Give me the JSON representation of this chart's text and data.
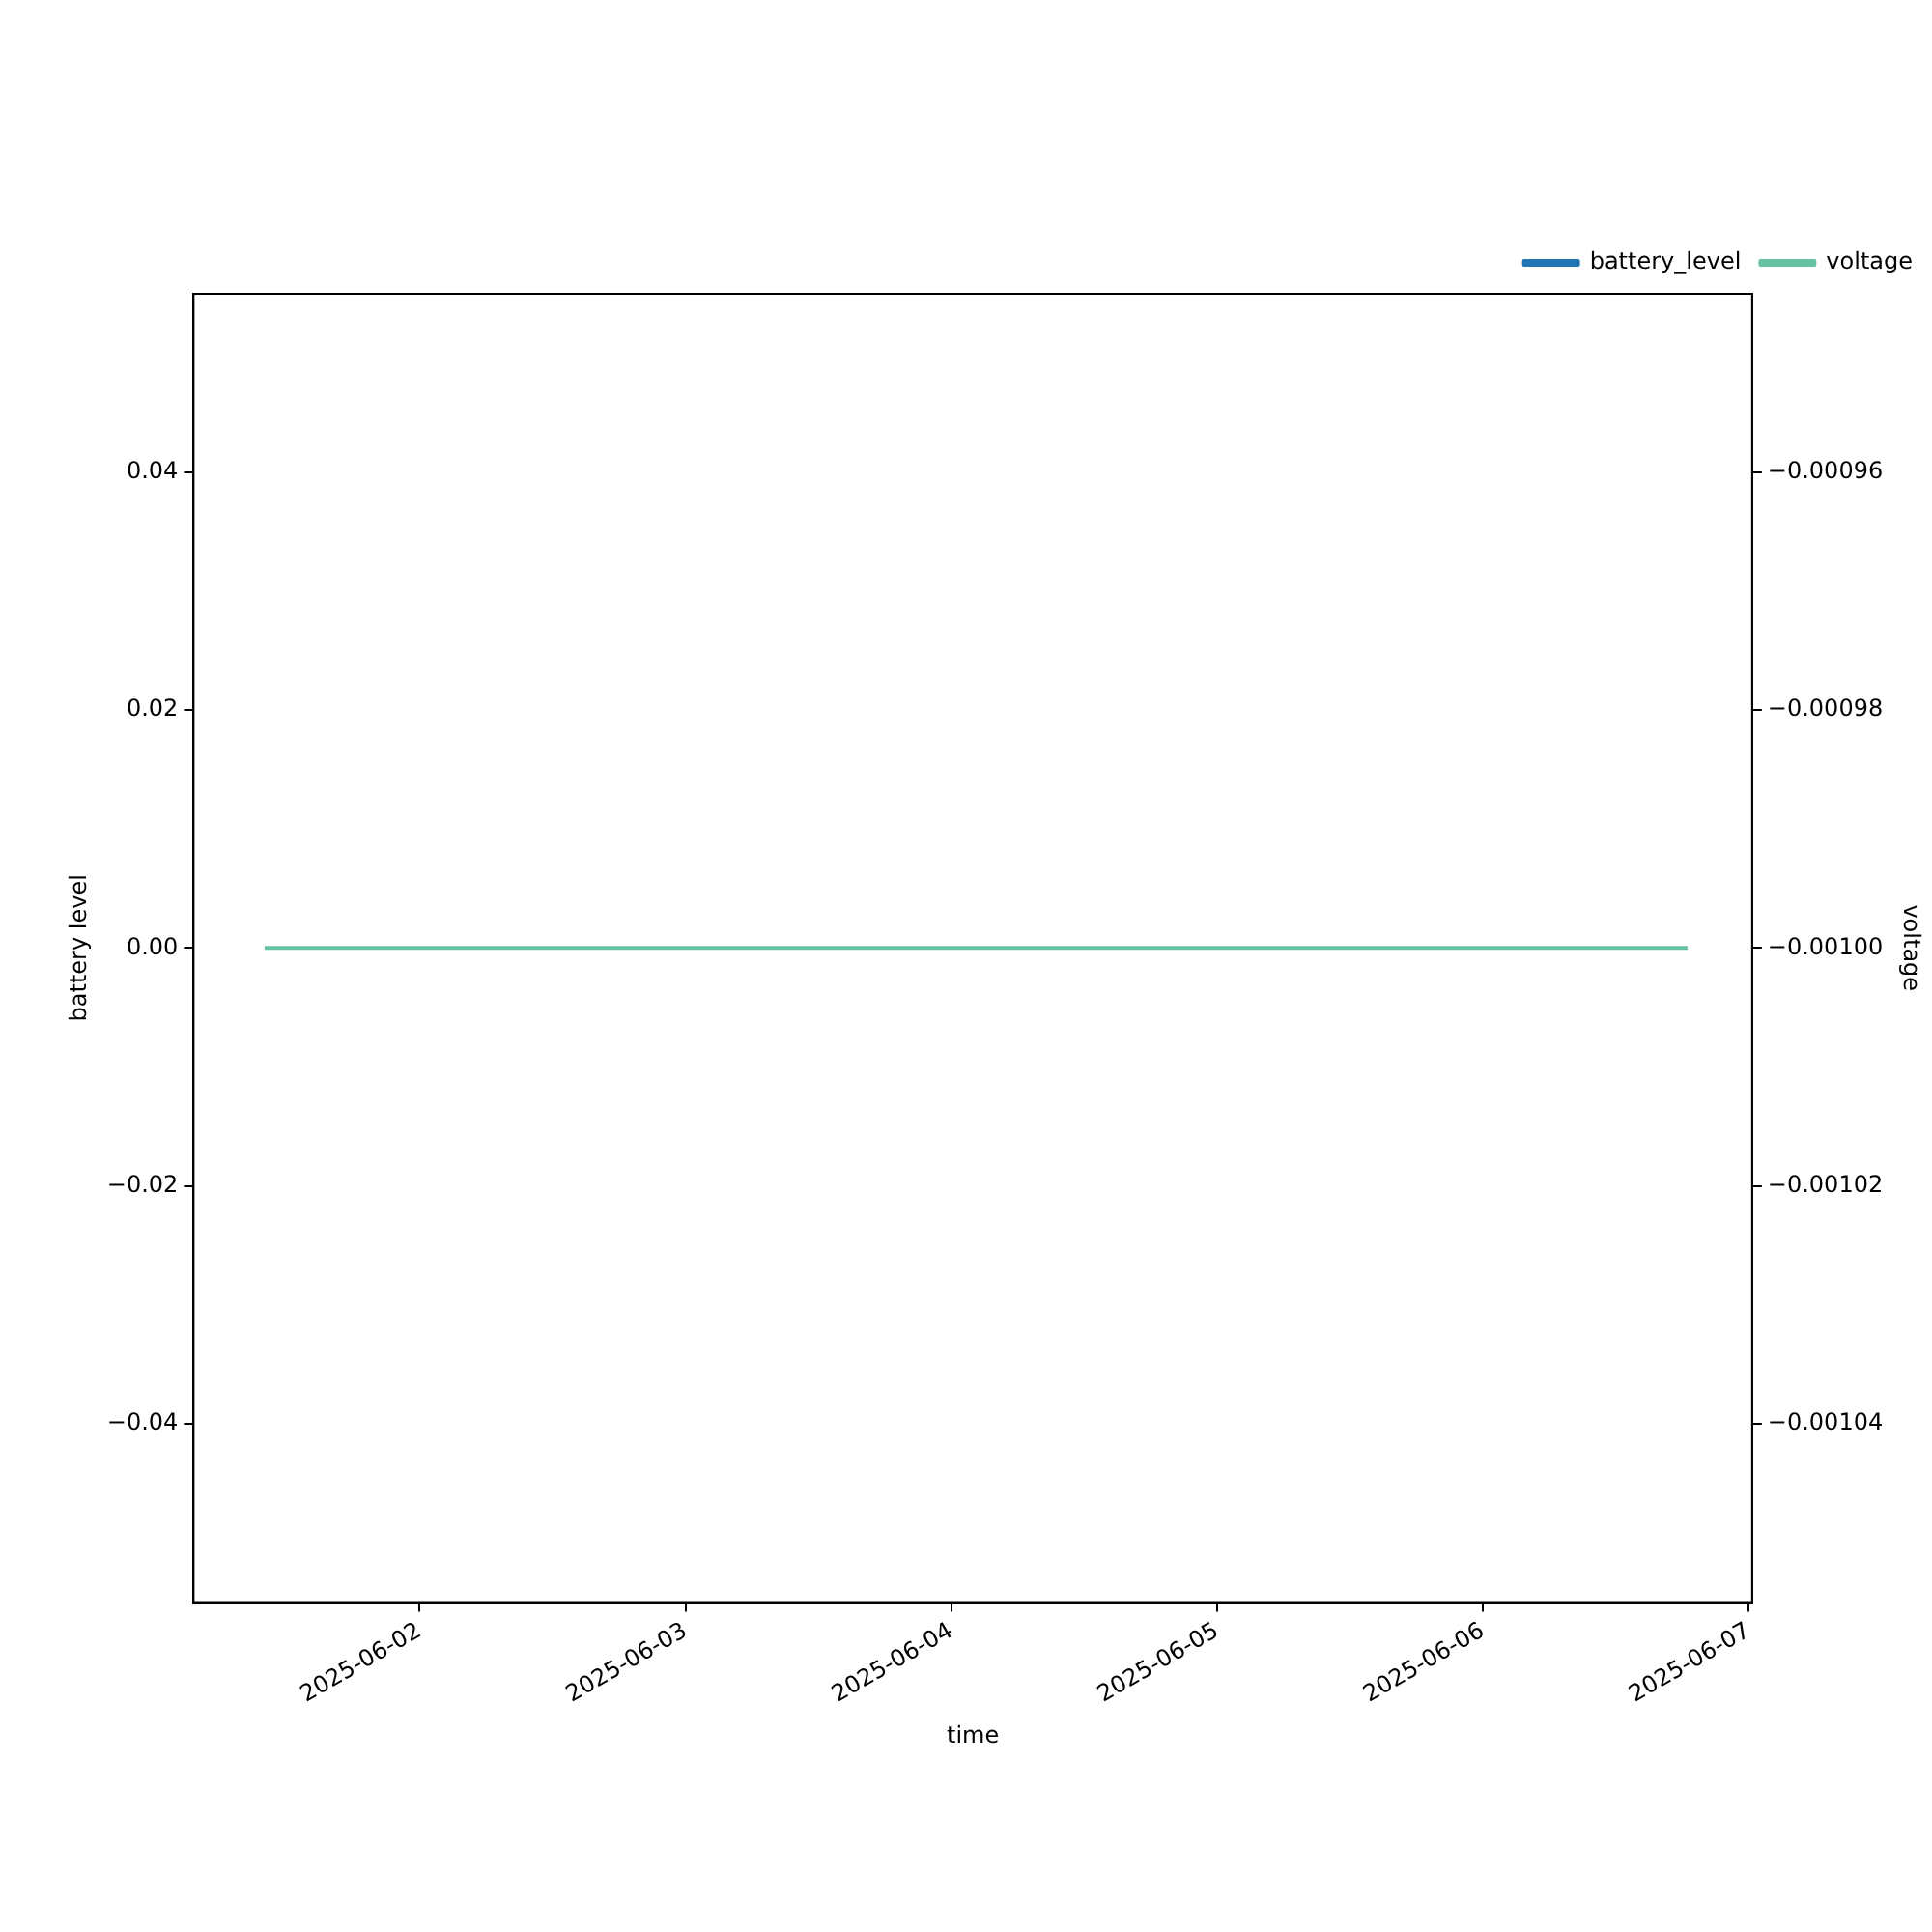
{
  "chart_data": {
    "type": "line",
    "xlabel": "time",
    "ylabel": "battery level",
    "y2label": "voltage",
    "x": [
      "2025-06-01T10:00",
      "2025-06-06T18:30"
    ],
    "series": [
      {
        "name": "battery_level",
        "color": "#1f77b4",
        "values": [
          null,
          null
        ]
      },
      {
        "name": "voltage",
        "color": "#66c2a5",
        "values": [
          -0.001,
          -0.001
        ],
        "axis": "y2"
      }
    ],
    "xlim": [
      "2025-06-01T03:35",
      "2025-06-07T00:20"
    ],
    "xticks": [
      "2025-06-02",
      "2025-06-03",
      "2025-06-04",
      "2025-06-05",
      "2025-06-06",
      "2025-06-07"
    ],
    "ylim": [
      -0.055,
      0.055
    ],
    "yticks": [
      {
        "value": -0.04,
        "label": "−0.04"
      },
      {
        "value": -0.02,
        "label": "−0.02"
      },
      {
        "value": 0,
        "label": "0.00"
      },
      {
        "value": 0.02,
        "label": "0.02"
      },
      {
        "value": 0.04,
        "label": "0.04"
      }
    ],
    "y2lim": [
      -0.001055,
      -0.000945
    ],
    "y2ticks": [
      {
        "value": -0.00104,
        "label": "−0.00104"
      },
      {
        "value": -0.00102,
        "label": "−0.00102"
      },
      {
        "value": -0.001,
        "label": "−0.00100"
      },
      {
        "value": -0.00098,
        "label": "−0.00098"
      },
      {
        "value": -0.00096,
        "label": "−0.00096"
      }
    ],
    "legend": "top right",
    "grid": false,
    "marker": "none",
    "line_style": "solid"
  }
}
